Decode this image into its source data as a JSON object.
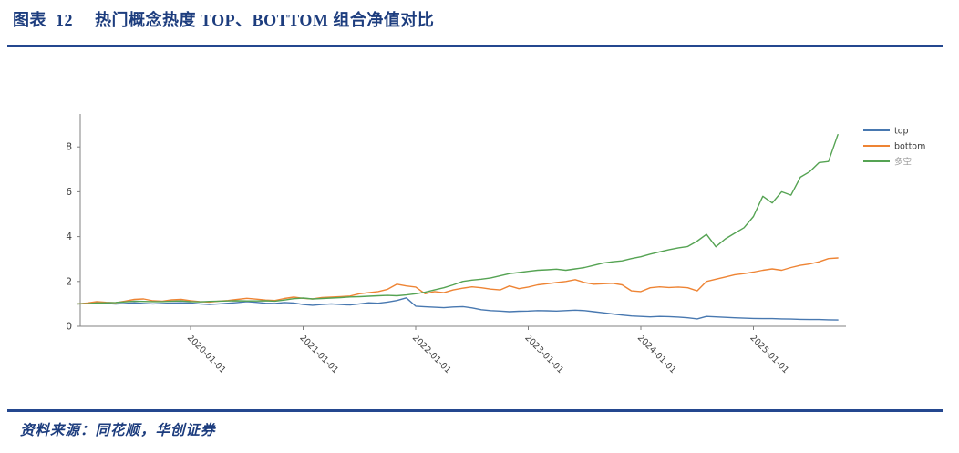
{
  "figure": {
    "label": "图表  12",
    "title": "热门概念热度 TOP、BOTTOM 组合净值对比",
    "source_label": "资料来源：",
    "source_text": "同花顺，华创证券",
    "accent_color": "#1D3D7E",
    "rule_color": "#24478F",
    "axis_color": "#808080",
    "tick_label_color": "#404040",
    "legend_text_color": "#3a3a3a",
    "legend_muted_text_color": "#9a9a9a"
  },
  "chart_data": {
    "type": "line",
    "title": "",
    "xlabel": "",
    "ylabel": "",
    "grid": false,
    "legend_position": "right-outside",
    "ylim": [
      0,
      9.5
    ],
    "yticks": [
      0,
      2,
      4,
      6,
      8
    ],
    "xticks": [
      "2020-01-01",
      "2021-01-01",
      "2022-01-01",
      "2023-01-01",
      "2024-01-01",
      "2025-01-01"
    ],
    "x_start": "2019-01",
    "x_end": "2025-10",
    "x": [
      "2019-01",
      "2019-02",
      "2019-03",
      "2019-04",
      "2019-05",
      "2019-06",
      "2019-07",
      "2019-08",
      "2019-09",
      "2019-10",
      "2019-11",
      "2019-12",
      "2020-01",
      "2020-02",
      "2020-03",
      "2020-04",
      "2020-05",
      "2020-06",
      "2020-07",
      "2020-08",
      "2020-09",
      "2020-10",
      "2020-11",
      "2020-12",
      "2021-01",
      "2021-02",
      "2021-03",
      "2021-04",
      "2021-05",
      "2021-06",
      "2021-07",
      "2021-08",
      "2021-09",
      "2021-10",
      "2021-11",
      "2021-12",
      "2022-01",
      "2022-02",
      "2022-03",
      "2022-04",
      "2022-05",
      "2022-06",
      "2022-07",
      "2022-08",
      "2022-09",
      "2022-10",
      "2022-11",
      "2022-12",
      "2023-01",
      "2023-02",
      "2023-03",
      "2023-04",
      "2023-05",
      "2023-06",
      "2023-07",
      "2023-08",
      "2023-09",
      "2023-10",
      "2023-11",
      "2023-12",
      "2024-01",
      "2024-02",
      "2024-03",
      "2024-04",
      "2024-05",
      "2024-06",
      "2024-07",
      "2024-08",
      "2024-09",
      "2024-10",
      "2024-11",
      "2024-12",
      "2025-01",
      "2025-02",
      "2025-03",
      "2025-04",
      "2025-05",
      "2025-06",
      "2025-07",
      "2025-08",
      "2025-09",
      "2025-10"
    ],
    "series": [
      {
        "name": "top",
        "color": "#4878B0",
        "values": [
          1.0,
          1.03,
          1.05,
          1.02,
          0.99,
          1.02,
          1.05,
          1.02,
          1.0,
          1.02,
          1.04,
          1.05,
          1.04,
          1.0,
          0.97,
          1.0,
          1.03,
          1.06,
          1.1,
          1.07,
          1.03,
          1.02,
          1.06,
          1.04,
          0.97,
          0.94,
          0.97,
          1.0,
          0.97,
          0.95,
          1.0,
          1.05,
          1.03,
          1.08,
          1.15,
          1.27,
          0.9,
          0.87,
          0.85,
          0.83,
          0.86,
          0.88,
          0.82,
          0.74,
          0.7,
          0.68,
          0.65,
          0.67,
          0.68,
          0.7,
          0.69,
          0.68,
          0.7,
          0.72,
          0.7,
          0.65,
          0.6,
          0.55,
          0.5,
          0.46,
          0.44,
          0.42,
          0.44,
          0.43,
          0.41,
          0.38,
          0.33,
          0.44,
          0.42,
          0.4,
          0.38,
          0.36,
          0.35,
          0.34,
          0.34,
          0.33,
          0.32,
          0.31,
          0.3,
          0.3,
          0.29,
          0.28
        ]
      },
      {
        "name": "bottom",
        "color": "#EE8434",
        "values": [
          1.0,
          1.04,
          1.1,
          1.07,
          1.05,
          1.12,
          1.2,
          1.22,
          1.14,
          1.12,
          1.18,
          1.2,
          1.14,
          1.1,
          1.08,
          1.12,
          1.15,
          1.2,
          1.25,
          1.21,
          1.17,
          1.15,
          1.24,
          1.3,
          1.25,
          1.22,
          1.28,
          1.3,
          1.32,
          1.35,
          1.45,
          1.5,
          1.55,
          1.65,
          1.88,
          1.8,
          1.75,
          1.45,
          1.55,
          1.5,
          1.62,
          1.7,
          1.76,
          1.72,
          1.66,
          1.62,
          1.8,
          1.68,
          1.75,
          1.85,
          1.9,
          1.95,
          2.0,
          2.08,
          1.95,
          1.88,
          1.9,
          1.92,
          1.85,
          1.58,
          1.55,
          1.72,
          1.76,
          1.73,
          1.75,
          1.72,
          1.58,
          2.0,
          2.1,
          2.2,
          2.3,
          2.35,
          2.42,
          2.5,
          2.56,
          2.5,
          2.62,
          2.72,
          2.78,
          2.88,
          3.02,
          3.05
        ]
      },
      {
        "name": "多空",
        "color": "#55A353",
        "values": [
          1.0,
          1.01,
          1.04,
          1.05,
          1.06,
          1.09,
          1.12,
          1.11,
          1.1,
          1.1,
          1.12,
          1.13,
          1.1,
          1.09,
          1.11,
          1.12,
          1.13,
          1.14,
          1.13,
          1.13,
          1.14,
          1.12,
          1.17,
          1.23,
          1.26,
          1.22,
          1.24,
          1.26,
          1.28,
          1.31,
          1.32,
          1.34,
          1.36,
          1.38,
          1.36,
          1.4,
          1.45,
          1.52,
          1.62,
          1.72,
          1.85,
          2.0,
          2.06,
          2.1,
          2.16,
          2.25,
          2.35,
          2.4,
          2.45,
          2.5,
          2.52,
          2.55,
          2.5,
          2.56,
          2.62,
          2.72,
          2.82,
          2.88,
          2.92,
          3.02,
          3.1,
          3.22,
          3.32,
          3.42,
          3.5,
          3.56,
          3.8,
          4.1,
          3.55,
          3.9,
          4.15,
          4.4,
          4.9,
          5.8,
          5.5,
          6.0,
          5.85,
          6.65,
          6.9,
          7.3,
          7.35,
          8.55
        ]
      }
    ]
  }
}
